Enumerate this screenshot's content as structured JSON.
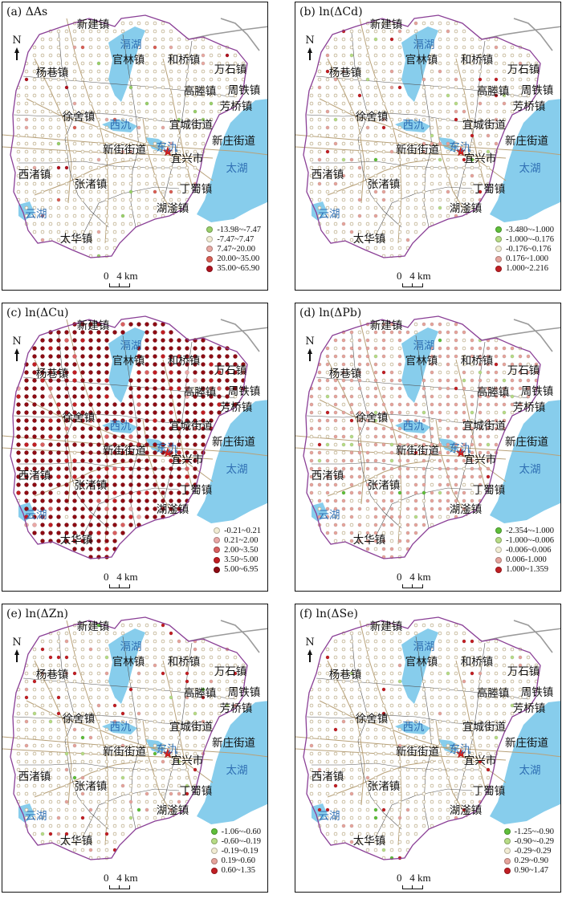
{
  "colors": {
    "water": "#87cdec",
    "boundary": "#8a3f96",
    "internal_boundary": "#555555",
    "road": "#b8a179",
    "highway": "#9a9a9a",
    "county_seat_star": "#d42020",
    "water_label": "#2f6fb3"
  },
  "north_label": "N",
  "scale_label": "0   4 km",
  "places": {
    "towns": [
      "新建镇",
      "官林镇",
      "和桥镇",
      "万石镇",
      "杨巷镇",
      "高塍镇",
      "周铁镇",
      "芳桥镇",
      "徐舍镇",
      "宜城街道",
      "新庄街道",
      "新街街道",
      "宜兴市",
      "西渚镇",
      "张渚镇",
      "丁蜀镇",
      "湖滏镇",
      "太华镇"
    ],
    "water": [
      "滆湖",
      "西氿",
      "东氿",
      "太湖",
      "云湖"
    ]
  },
  "panels": [
    {
      "id": "a",
      "title": "(a) ΔAs",
      "legend": [
        {
          "label": "-13.98~-7.47",
          "color": "#9ad06a"
        },
        {
          "label": "-7.47~7.47",
          "color": "#f2ecd3"
        },
        {
          "label": "7.47~20.00",
          "color": "#e8a9a2"
        },
        {
          "label": "20.00~35.00",
          "color": "#d95f55"
        },
        {
          "label": "35.00~65.90",
          "color": "#b0121f"
        }
      ],
      "class_shares": [
        0.01,
        0.945,
        0.03,
        0.01,
        0.005
      ]
    },
    {
      "id": "b",
      "title": "(b) ln(ΔCd)",
      "legend": [
        {
          "label": "-3.480~-1.000",
          "color": "#5fbf3a"
        },
        {
          "label": "-1.000~-0.176",
          "color": "#b7dc86"
        },
        {
          "label": "-0.176~0.176",
          "color": "#f2ecd3"
        },
        {
          "label": "0.176~1.000",
          "color": "#e6a49c"
        },
        {
          "label": "1.000~2.216",
          "color": "#c21f24"
        }
      ],
      "class_shares": [
        0.005,
        0.025,
        0.87,
        0.08,
        0.02
      ]
    },
    {
      "id": "c",
      "title": "(c) ln(ΔCu)",
      "legend": [
        {
          "label": "-0.21~0.21",
          "color": "#f2ecd3"
        },
        {
          "label": "0.21~2.00",
          "color": "#eaa8a6"
        },
        {
          "label": "2.00~3.50",
          "color": "#d96060"
        },
        {
          "label": "3.50~5.00",
          "color": "#c11d22"
        },
        {
          "label": "5.00~6.95",
          "color": "#8e0b13"
        }
      ],
      "class_shares": [
        0.02,
        0.02,
        0.04,
        0.12,
        0.8
      ]
    },
    {
      "id": "d",
      "title": "(d) ln(ΔPb)",
      "legend": [
        {
          "label": "-2.354~-1.000",
          "color": "#5fbf3a"
        },
        {
          "label": "-1.000~-0.006",
          "color": "#b7dc86"
        },
        {
          "label": "-0.006~0.006",
          "color": "#f2ecd3"
        },
        {
          "label": "0.006-1.000",
          "color": "#e6a49c"
        },
        {
          "label": "1.000~1.359",
          "color": "#c21f24"
        }
      ],
      "class_shares": [
        0.005,
        0.03,
        0.3,
        0.655,
        0.01
      ]
    },
    {
      "id": "e",
      "title": "(e) ln(ΔZn)",
      "legend": [
        {
          "label": "-1.06~-0.60",
          "color": "#5fbf3a"
        },
        {
          "label": "-0.60~-0.19",
          "color": "#b7dc86"
        },
        {
          "label": "-0.19~0.19",
          "color": "#f2ecd3"
        },
        {
          "label": "0.19~0.60",
          "color": "#e6a49c"
        },
        {
          "label": "0.60~1.35",
          "color": "#c21f24"
        }
      ],
      "class_shares": [
        0.01,
        0.03,
        0.85,
        0.07,
        0.04
      ]
    },
    {
      "id": "f",
      "title": "(f) ln(ΔSe)",
      "legend": [
        {
          "label": "-1.25~-0.90",
          "color": "#5fbf3a"
        },
        {
          "label": "-0.90~-0.29",
          "color": "#b7dc86"
        },
        {
          "label": "-0.29~0.29",
          "color": "#f2ecd3"
        },
        {
          "label": "0.29~0.90",
          "color": "#e6a49c"
        },
        {
          "label": "0.90~1.47",
          "color": "#c21f24"
        }
      ],
      "class_shares": [
        0.005,
        0.02,
        0.93,
        0.03,
        0.015
      ]
    }
  ]
}
